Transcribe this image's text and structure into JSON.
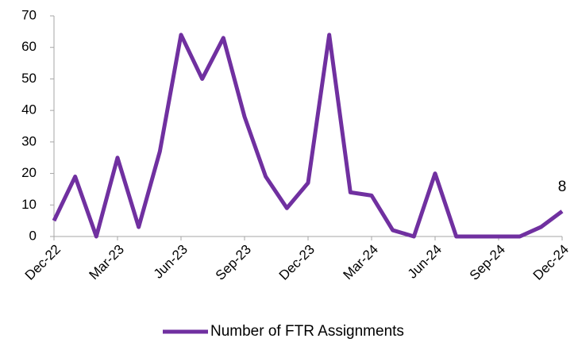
{
  "chart_data": {
    "type": "line",
    "categories": [
      "Dec-22",
      null,
      null,
      "Mar-23",
      null,
      null,
      "Jun-23",
      null,
      null,
      "Sep-23",
      null,
      null,
      "Dec-23",
      null,
      null,
      "Mar-24",
      null,
      null,
      "Jun-24",
      null,
      null,
      "Sep-24",
      null,
      null,
      "Dec-24"
    ],
    "series": [
      {
        "name": "Number of FTR Assignments",
        "color": "#7030a0",
        "values": [
          5,
          19,
          0,
          25,
          3,
          27,
          64,
          50,
          63,
          38,
          19,
          9,
          17,
          64,
          14,
          13,
          2,
          0,
          20,
          0,
          0,
          0,
          0,
          3,
          8
        ]
      }
    ],
    "ylim": [
      0,
      70
    ],
    "yticks": [
      0,
      10,
      20,
      30,
      40,
      50,
      60,
      70
    ],
    "grid": false,
    "legend": "bottom"
  }
}
